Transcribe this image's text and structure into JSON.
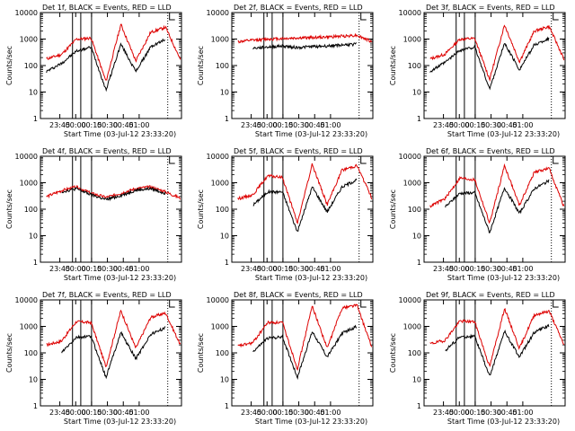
{
  "chart_data": {
    "type": "line",
    "scale": "log-y",
    "ylim": [
      1,
      10000
    ],
    "ylabel": "Counts/sec",
    "xlabel": "Start Time (03-Jul-12 23:33:20)",
    "xlim_hours": [
      -0.5555,
      1.6667
    ],
    "x_tick_labels": [
      "23:45",
      "00:00",
      "00:15",
      "00:30",
      "00:45",
      "01:00"
    ],
    "y_tick_labels": [
      "1",
      "10",
      "100",
      "1000",
      "10000"
    ],
    "series_colors": {
      "events": "#000000",
      "lld": "#dd0000"
    },
    "lld_label": "LLD",
    "panels": [
      {
        "title": "Det 1f, BLACK = Events, RED = LLD",
        "t_start": 23.62,
        "t_end": 1.6,
        "plot": "01:01",
        "lld": [
          180,
          260,
          980,
          1100,
          25,
          3600,
          150,
          1800,
          2800,
          170
        ],
        "events": [
          60,
          120,
          350,
          500,
          12,
          650,
          60,
          500,
          1000,
          0
        ]
      },
      {
        "title": "Det 2f, BLACK = Events, RED = LLD",
        "t_start": 23.62,
        "t_end": 1.6,
        "plot": "01:01",
        "lld": [
          800,
          900,
          1000,
          1050,
          1100,
          1150,
          1200,
          1300,
          1400,
          800
        ],
        "events": [
          0,
          450,
          500,
          550,
          480,
          520,
          550,
          600,
          650,
          0
        ]
      },
      {
        "title": "Det 3f, BLACK = Events, RED = LLD",
        "t_start": 23.62,
        "t_end": 1.6,
        "plot": "01:01",
        "lld": [
          180,
          270,
          1000,
          1050,
          30,
          3500,
          140,
          2000,
          3000,
          170
        ],
        "events": [
          60,
          130,
          380,
          500,
          13,
          700,
          70,
          600,
          1050,
          0
        ]
      },
      {
        "title": "Det 4f, BLACK = Events, RED = LLD",
        "t_start": 23.62,
        "t_end": 1.6,
        "plot": "01:01",
        "lld": [
          300,
          500,
          700,
          400,
          280,
          400,
          600,
          700,
          450,
          260
        ],
        "events": [
          0,
          450,
          600,
          350,
          230,
          330,
          520,
          600,
          400,
          0
        ]
      },
      {
        "title": "Det 5f, BLACK = Events, RED = LLD",
        "t_start": 23.62,
        "t_end": 1.6,
        "plot": "01:01",
        "lld": [
          250,
          350,
          1800,
          1600,
          30,
          5000,
          150,
          3000,
          4500,
          270
        ],
        "events": [
          0,
          140,
          450,
          450,
          14,
          700,
          80,
          700,
          1300,
          0
        ]
      },
      {
        "title": "Det 6f, BLACK = Events, RED = LLD",
        "t_start": 23.62,
        "t_end": 1.6,
        "plot": "01:01",
        "lld": [
          130,
          250,
          1500,
          1300,
          30,
          4500,
          140,
          2500,
          3500,
          120
        ],
        "events": [
          0,
          120,
          400,
          420,
          13,
          650,
          70,
          600,
          1200,
          0
        ]
      },
      {
        "title": "Det 7f, BLACK = Events, RED = LLD",
        "t_start": 23.62,
        "t_end": 1.6,
        "plot": "01:01",
        "lld": [
          200,
          280,
          1500,
          1400,
          30,
          4000,
          150,
          2200,
          3200,
          200
        ],
        "events": [
          0,
          100,
          380,
          420,
          12,
          600,
          60,
          500,
          900,
          0
        ]
      },
      {
        "title": "Det 8f, BLACK = Events, RED = LLD",
        "t_start": 23.62,
        "t_end": 1.6,
        "plot": "01:01",
        "lld": [
          180,
          240,
          1400,
          1400,
          25,
          6000,
          150,
          5000,
          6500,
          160
        ],
        "events": [
          0,
          110,
          360,
          400,
          12,
          650,
          70,
          550,
          1000,
          0
        ]
      },
      {
        "title": "Det 9f, BLACK = Events, RED = LLD",
        "t_start": 23.62,
        "t_end": 1.6,
        "plot": "01:01",
        "lld": [
          220,
          300,
          1600,
          1500,
          30,
          4800,
          150,
          2700,
          3800,
          200
        ],
        "events": [
          0,
          120,
          400,
          420,
          13,
          650,
          70,
          600,
          1100,
          0
        ]
      }
    ]
  }
}
